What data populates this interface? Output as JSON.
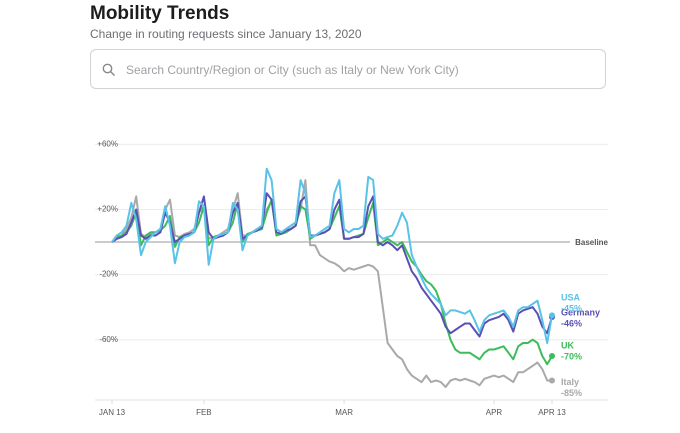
{
  "header": {
    "title": "Mobility Trends",
    "subtitle": "Change in routing requests since January 13, 2020"
  },
  "search": {
    "placeholder": "Search Country/Region or City (such as Italy or New York City)"
  },
  "chart_data": {
    "type": "line",
    "baseline_label": "Baseline",
    "x": [
      "2020-01-13",
      "2020-01-14",
      "2020-01-15",
      "2020-01-16",
      "2020-01-17",
      "2020-01-18",
      "2020-01-19",
      "2020-01-20",
      "2020-01-21",
      "2020-01-22",
      "2020-01-23",
      "2020-01-24",
      "2020-01-25",
      "2020-01-26",
      "2020-01-27",
      "2020-01-28",
      "2020-01-29",
      "2020-01-30",
      "2020-01-31",
      "2020-02-01",
      "2020-02-02",
      "2020-02-03",
      "2020-02-04",
      "2020-02-05",
      "2020-02-06",
      "2020-02-07",
      "2020-02-08",
      "2020-02-09",
      "2020-02-10",
      "2020-02-11",
      "2020-02-12",
      "2020-02-13",
      "2020-02-14",
      "2020-02-15",
      "2020-02-16",
      "2020-02-17",
      "2020-02-18",
      "2020-02-19",
      "2020-02-20",
      "2020-02-21",
      "2020-02-22",
      "2020-02-23",
      "2020-02-24",
      "2020-02-25",
      "2020-02-26",
      "2020-02-27",
      "2020-02-28",
      "2020-02-29",
      "2020-03-01",
      "2020-03-02",
      "2020-03-03",
      "2020-03-04",
      "2020-03-05",
      "2020-03-06",
      "2020-03-07",
      "2020-03-08",
      "2020-03-09",
      "2020-03-10",
      "2020-03-11",
      "2020-03-12",
      "2020-03-13",
      "2020-03-14",
      "2020-03-15",
      "2020-03-16",
      "2020-03-17",
      "2020-03-18",
      "2020-03-19",
      "2020-03-20",
      "2020-03-21",
      "2020-03-22",
      "2020-03-23",
      "2020-03-24",
      "2020-03-25",
      "2020-03-26",
      "2020-03-27",
      "2020-03-28",
      "2020-03-29",
      "2020-03-30",
      "2020-03-31",
      "2020-04-01",
      "2020-04-02",
      "2020-04-03",
      "2020-04-04",
      "2020-04-05",
      "2020-04-06",
      "2020-04-07",
      "2020-04-08",
      "2020-04-09",
      "2020-04-10",
      "2020-04-11",
      "2020-04-12",
      "2020-04-13"
    ],
    "xlim": [
      "2020-01-13",
      "2020-04-13"
    ],
    "xticks": [
      {
        "value": "2020-01-13",
        "label": "JAN 13"
      },
      {
        "value": "2020-02-01",
        "label": "FEB"
      },
      {
        "value": "2020-03-01",
        "label": "MAR"
      },
      {
        "value": "2020-04-01",
        "label": "APR"
      },
      {
        "value": "2020-04-13",
        "label": "APR 13"
      }
    ],
    "ylim": [
      -97,
      78
    ],
    "yticks": [
      {
        "value": 60,
        "label": "+60%"
      },
      {
        "value": 20,
        "label": "+20%"
      },
      {
        "value": -20,
        "label": "-20%"
      },
      {
        "value": -60,
        "label": "-60%"
      }
    ],
    "grid": true,
    "series": [
      {
        "name": "Italy",
        "color": "#a9a9a9",
        "end_label": "-85%",
        "values": [
          0,
          2,
          4,
          8,
          15,
          28,
          5,
          3,
          5,
          6,
          8,
          20,
          26,
          4,
          3,
          5,
          6,
          8,
          18,
          22,
          2,
          3,
          4,
          6,
          8,
          20,
          30,
          4,
          4,
          6,
          8,
          10,
          20,
          25,
          8,
          6,
          8,
          10,
          12,
          20,
          38,
          -2,
          -2,
          -8,
          -10,
          -12,
          -13,
          -15,
          -18,
          -16,
          -17,
          -16,
          -15,
          -14,
          -15,
          -18,
          -40,
          -62,
          -66,
          -70,
          -72,
          -78,
          -82,
          -84,
          -86,
          -82,
          -86,
          -85,
          -86,
          -89,
          -85,
          -84,
          -85,
          -84,
          -85,
          -86,
          -88,
          -84,
          -83,
          -82,
          -83,
          -82,
          -84,
          -86,
          -80,
          -80,
          -78,
          -76,
          -74,
          -78,
          -85,
          -85
        ]
      },
      {
        "name": "UK",
        "color": "#3cbc5a",
        "end_label": "-70%",
        "values": [
          0,
          3,
          4,
          6,
          10,
          18,
          -2,
          4,
          6,
          6,
          7,
          10,
          16,
          -3,
          3,
          4,
          5,
          6,
          12,
          22,
          -2,
          3,
          4,
          5,
          6,
          12,
          24,
          0,
          5,
          6,
          7,
          8,
          18,
          26,
          4,
          5,
          6,
          8,
          10,
          22,
          20,
          2,
          4,
          5,
          6,
          8,
          15,
          22,
          2,
          2,
          3,
          4,
          5,
          15,
          24,
          -2,
          0,
          2,
          0,
          -2,
          0,
          -6,
          -12,
          -15,
          -20,
          -24,
          -26,
          -30,
          -38,
          -50,
          -60,
          -66,
          -68,
          -68,
          -68,
          -70,
          -72,
          -68,
          -66,
          -66,
          -65,
          -64,
          -68,
          -72,
          -64,
          -62,
          -62,
          -60,
          -62,
          -70,
          -75,
          -70
        ]
      },
      {
        "name": "Germany",
        "color": "#5a50b4",
        "end_label": "-46%",
        "values": [
          0,
          2,
          3,
          5,
          12,
          20,
          4,
          2,
          4,
          4,
          6,
          18,
          12,
          0,
          2,
          4,
          5,
          6,
          18,
          28,
          6,
          2,
          3,
          4,
          6,
          18,
          24,
          2,
          4,
          6,
          7,
          9,
          30,
          26,
          6,
          5,
          7,
          8,
          10,
          25,
          28,
          4,
          4,
          5,
          6,
          8,
          20,
          26,
          2,
          2,
          3,
          3,
          5,
          22,
          28,
          0,
          -2,
          0,
          -2,
          -5,
          -2,
          -10,
          -18,
          -22,
          -28,
          -32,
          -36,
          -40,
          -44,
          -52,
          -56,
          -54,
          -52,
          -50,
          -50,
          -54,
          -58,
          -50,
          -48,
          -47,
          -46,
          -44,
          -48,
          -55,
          -44,
          -42,
          -41,
          -40,
          -44,
          -52,
          -56,
          -46
        ]
      },
      {
        "name": "USA",
        "color": "#5ac2e8",
        "end_label": "-45%",
        "values": [
          0,
          4,
          6,
          10,
          24,
          14,
          -8,
          0,
          3,
          6,
          8,
          22,
          10,
          -13,
          0,
          3,
          4,
          6,
          25,
          22,
          -14,
          2,
          4,
          5,
          6,
          24,
          20,
          -5,
          4,
          6,
          8,
          10,
          45,
          38,
          8,
          6,
          8,
          10,
          12,
          38,
          30,
          3,
          4,
          6,
          8,
          10,
          30,
          38,
          8,
          6,
          8,
          8,
          10,
          40,
          38,
          5,
          2,
          3,
          4,
          10,
          18,
          12,
          -8,
          -15,
          -22,
          -28,
          -32,
          -35,
          -38,
          -45,
          -42,
          -42,
          -43,
          -44,
          -42,
          -48,
          -55,
          -48,
          -45,
          -44,
          -43,
          -42,
          -46,
          -52,
          -42,
          -40,
          -40,
          -38,
          -36,
          -48,
          -62,
          -45
        ]
      }
    ]
  }
}
